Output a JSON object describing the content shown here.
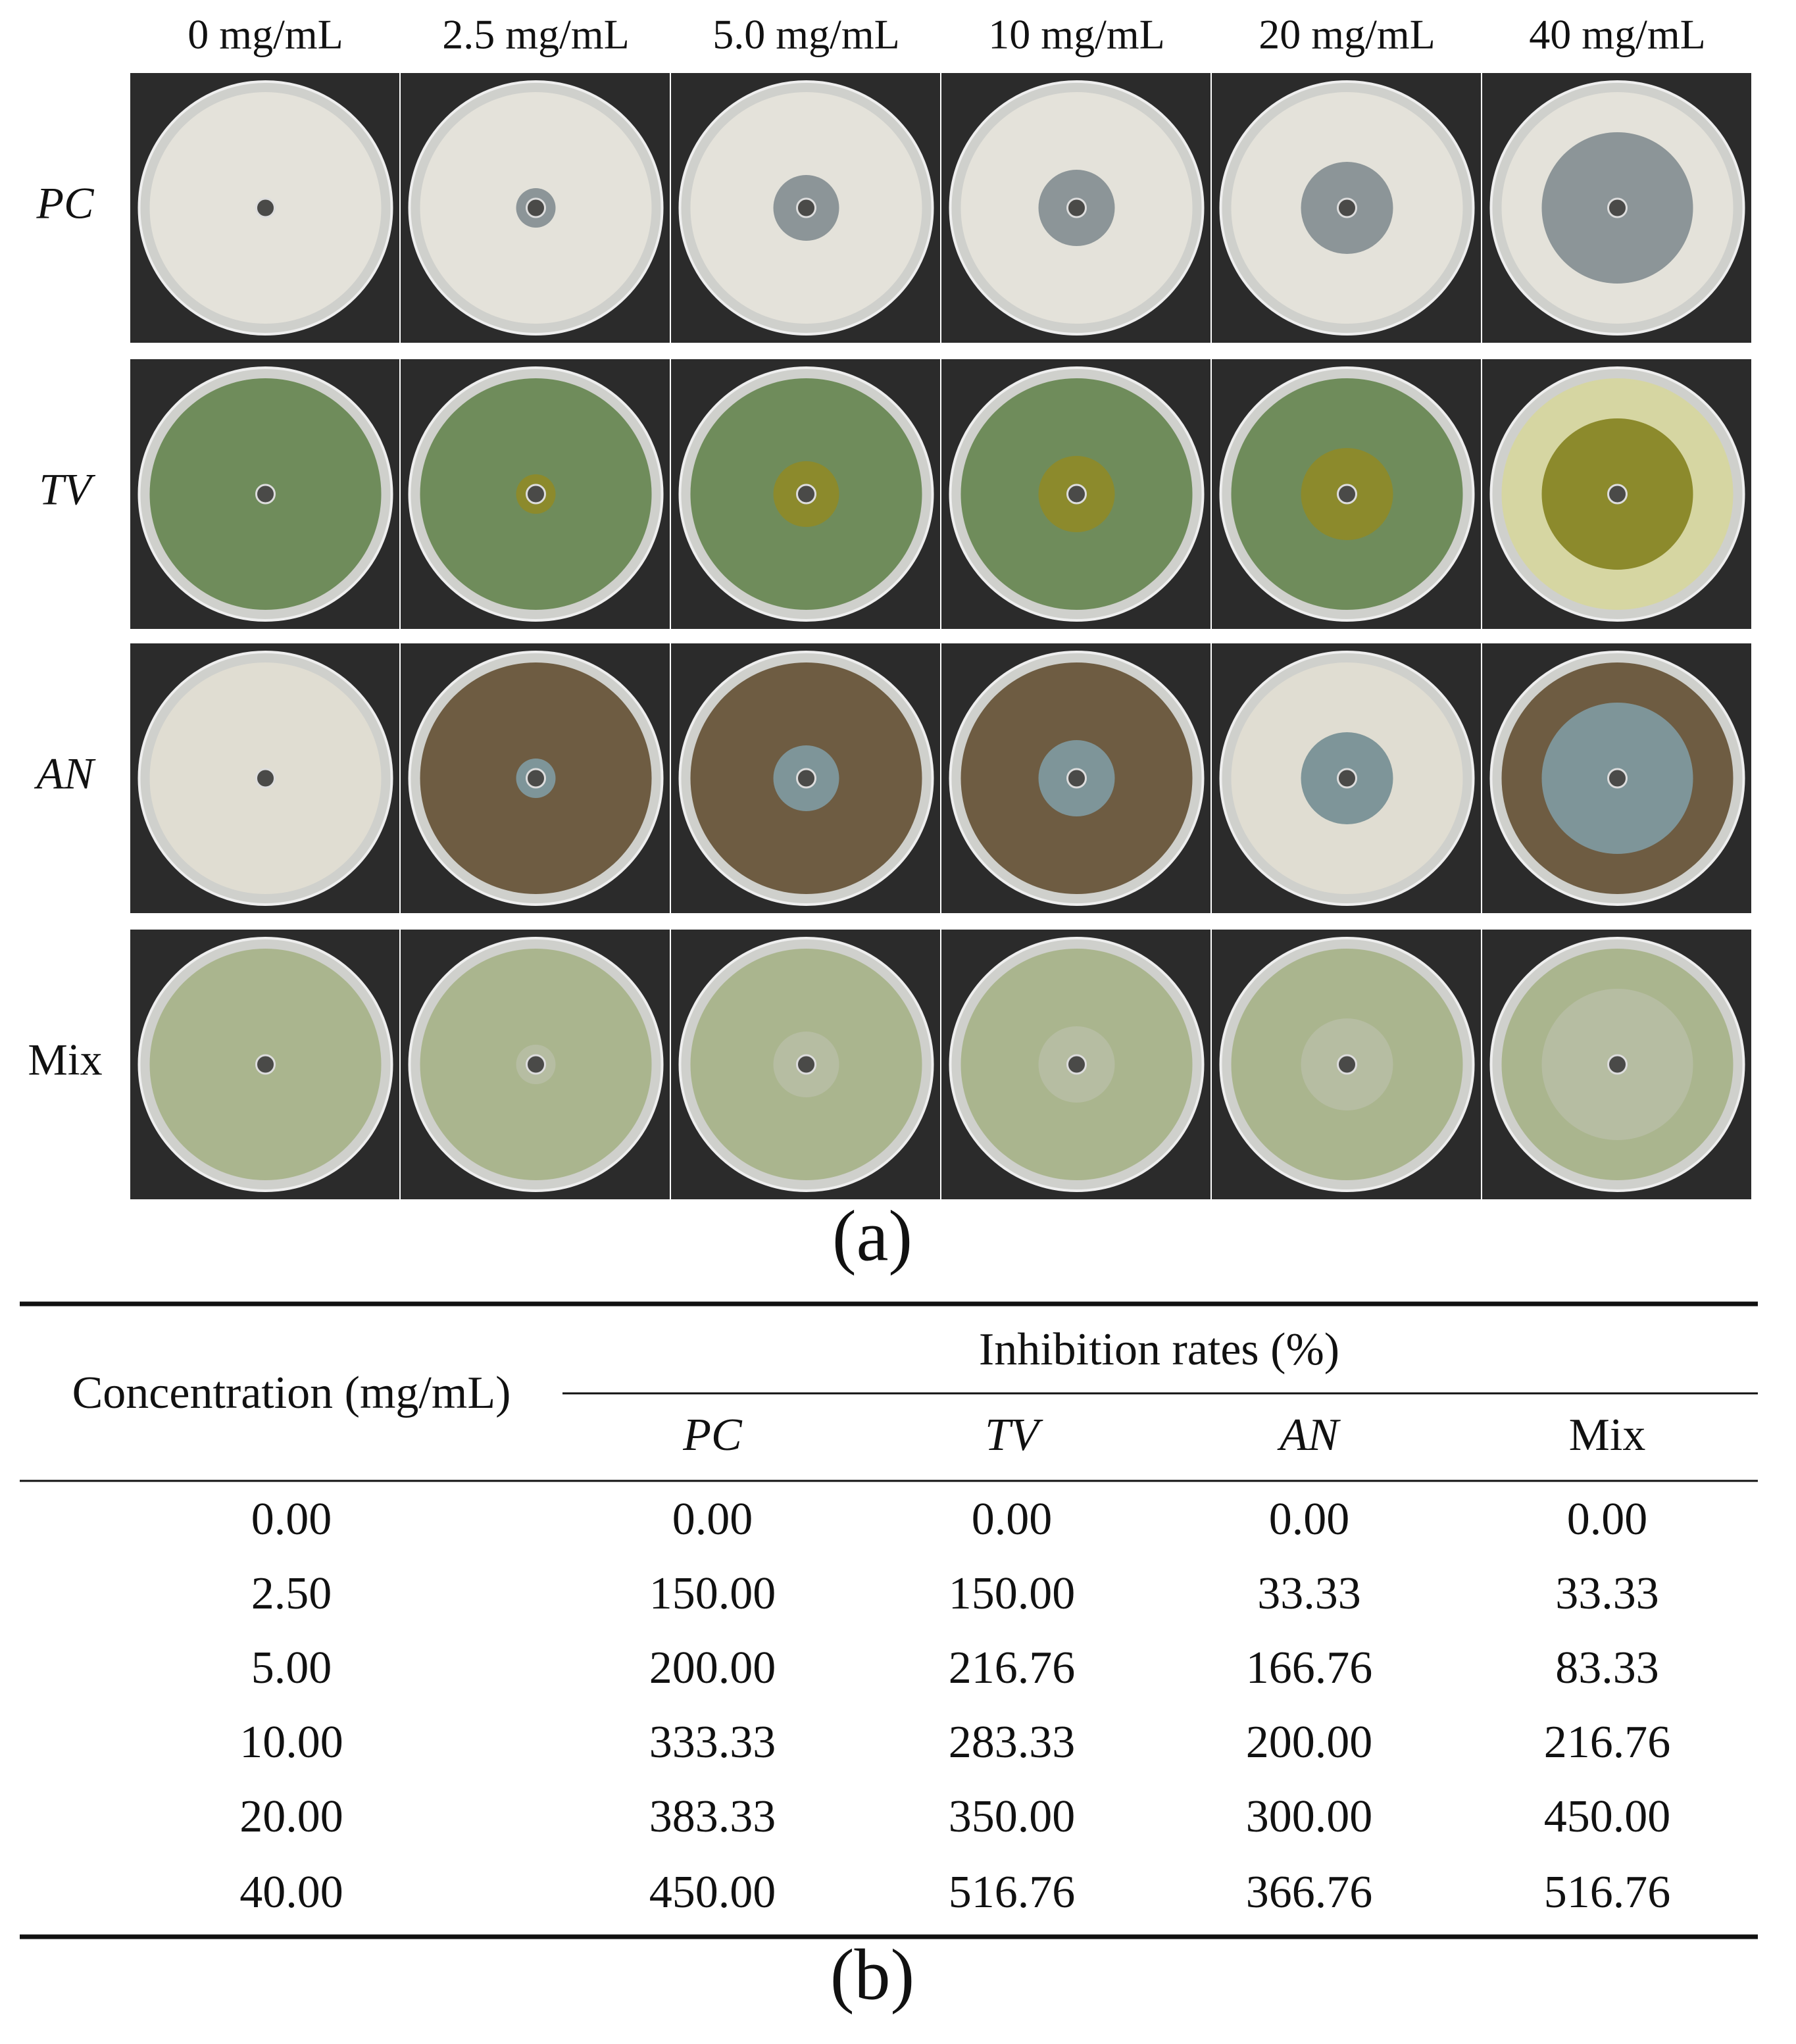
{
  "figure_a": {
    "column_headers": [
      "0 mg/mL",
      "2.5 mg/mL",
      "5.0 mg/mL",
      "10 mg/mL",
      "20 mg/mL",
      "40 mg/mL"
    ],
    "row_labels": [
      "PC",
      "TV",
      "AN",
      "Mix"
    ],
    "label": "(a)"
  },
  "table": {
    "header": {
      "first": "Concentration (mg/mL)",
      "group": "Inhibition rates (%)",
      "columns": [
        "PC",
        "TV",
        "AN",
        "Mix"
      ]
    },
    "rows": [
      [
        "0.00",
        "0.00",
        "0.00",
        "0.00",
        "0.00"
      ],
      [
        "2.50",
        "150.00",
        "150.00",
        "33.33",
        "33.33"
      ],
      [
        "5.00",
        "200.00",
        "216.76",
        "166.76",
        "83.33"
      ],
      [
        "10.00",
        "333.33",
        "283.33",
        "200.00",
        "216.76"
      ],
      [
        "20.00",
        "383.33",
        "350.00",
        "300.00",
        "450.00"
      ],
      [
        "40.00",
        "450.00",
        "516.76",
        "366.76",
        "516.76"
      ]
    ],
    "label": "(b)"
  }
}
